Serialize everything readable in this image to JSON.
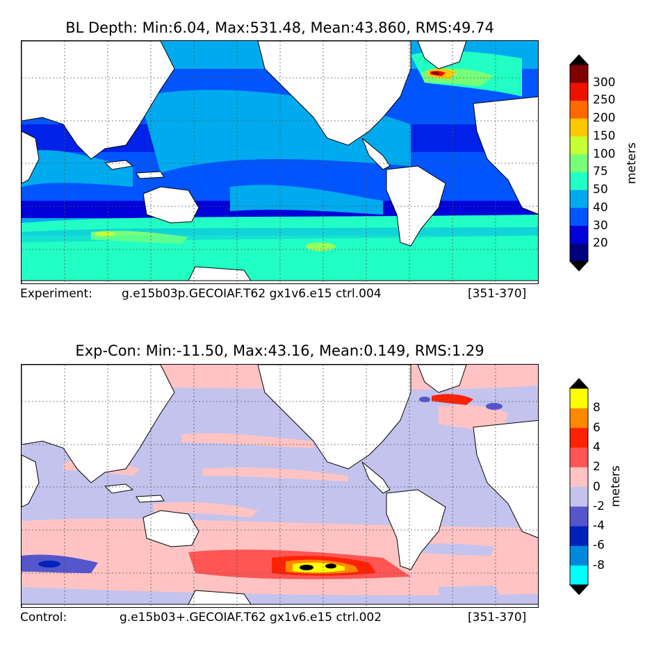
{
  "top_panel": {
    "title": "BL Depth: Min:6.04, Max:531.48, Mean:43.860, RMS:49.74",
    "footer_label": "Experiment:",
    "footer_case": "g.e15b03p.GECOIAF.T62 gx1v6.e15 ctrl.004",
    "footer_years": "[351-370]",
    "colorbar": {
      "units": "meters",
      "ticks": [
        "300",
        "250",
        "200",
        "150",
        "100",
        "75",
        "50",
        "40",
        "30",
        "20"
      ],
      "colors": [
        "#00007f",
        "#0000d9",
        "#0055ff",
        "#00aaee",
        "#22ffc4",
        "#77ff77",
        "#c8ff34",
        "#ffc800",
        "#ff6a00",
        "#ee1100",
        "#7f0000"
      ],
      "under_color": "#000000",
      "over_color": "#000000"
    }
  },
  "bottom_panel": {
    "title": "Exp-Con: Min:-11.50, Max:43.16, Mean:0.149, RMS:1.29",
    "footer_label": "Control:",
    "footer_case": "g.e15b03+.GECOIAF.T62 gx1v6.e15 ctrl.002",
    "footer_years": "[351-370]",
    "colorbar": {
      "units": "meters",
      "ticks": [
        "8",
        "6",
        "4",
        "2",
        "0",
        "-2",
        "-4",
        "-6",
        "-8"
      ],
      "colors": [
        "#00ffff",
        "#0088dd",
        "#0022bb",
        "#5555cc",
        "#c3c3ee",
        "#ffc3c3",
        "#ff5555",
        "#ff2200",
        "#ff8800",
        "#ffff00"
      ],
      "under_color": "#000000",
      "over_color": "#000000"
    }
  }
}
